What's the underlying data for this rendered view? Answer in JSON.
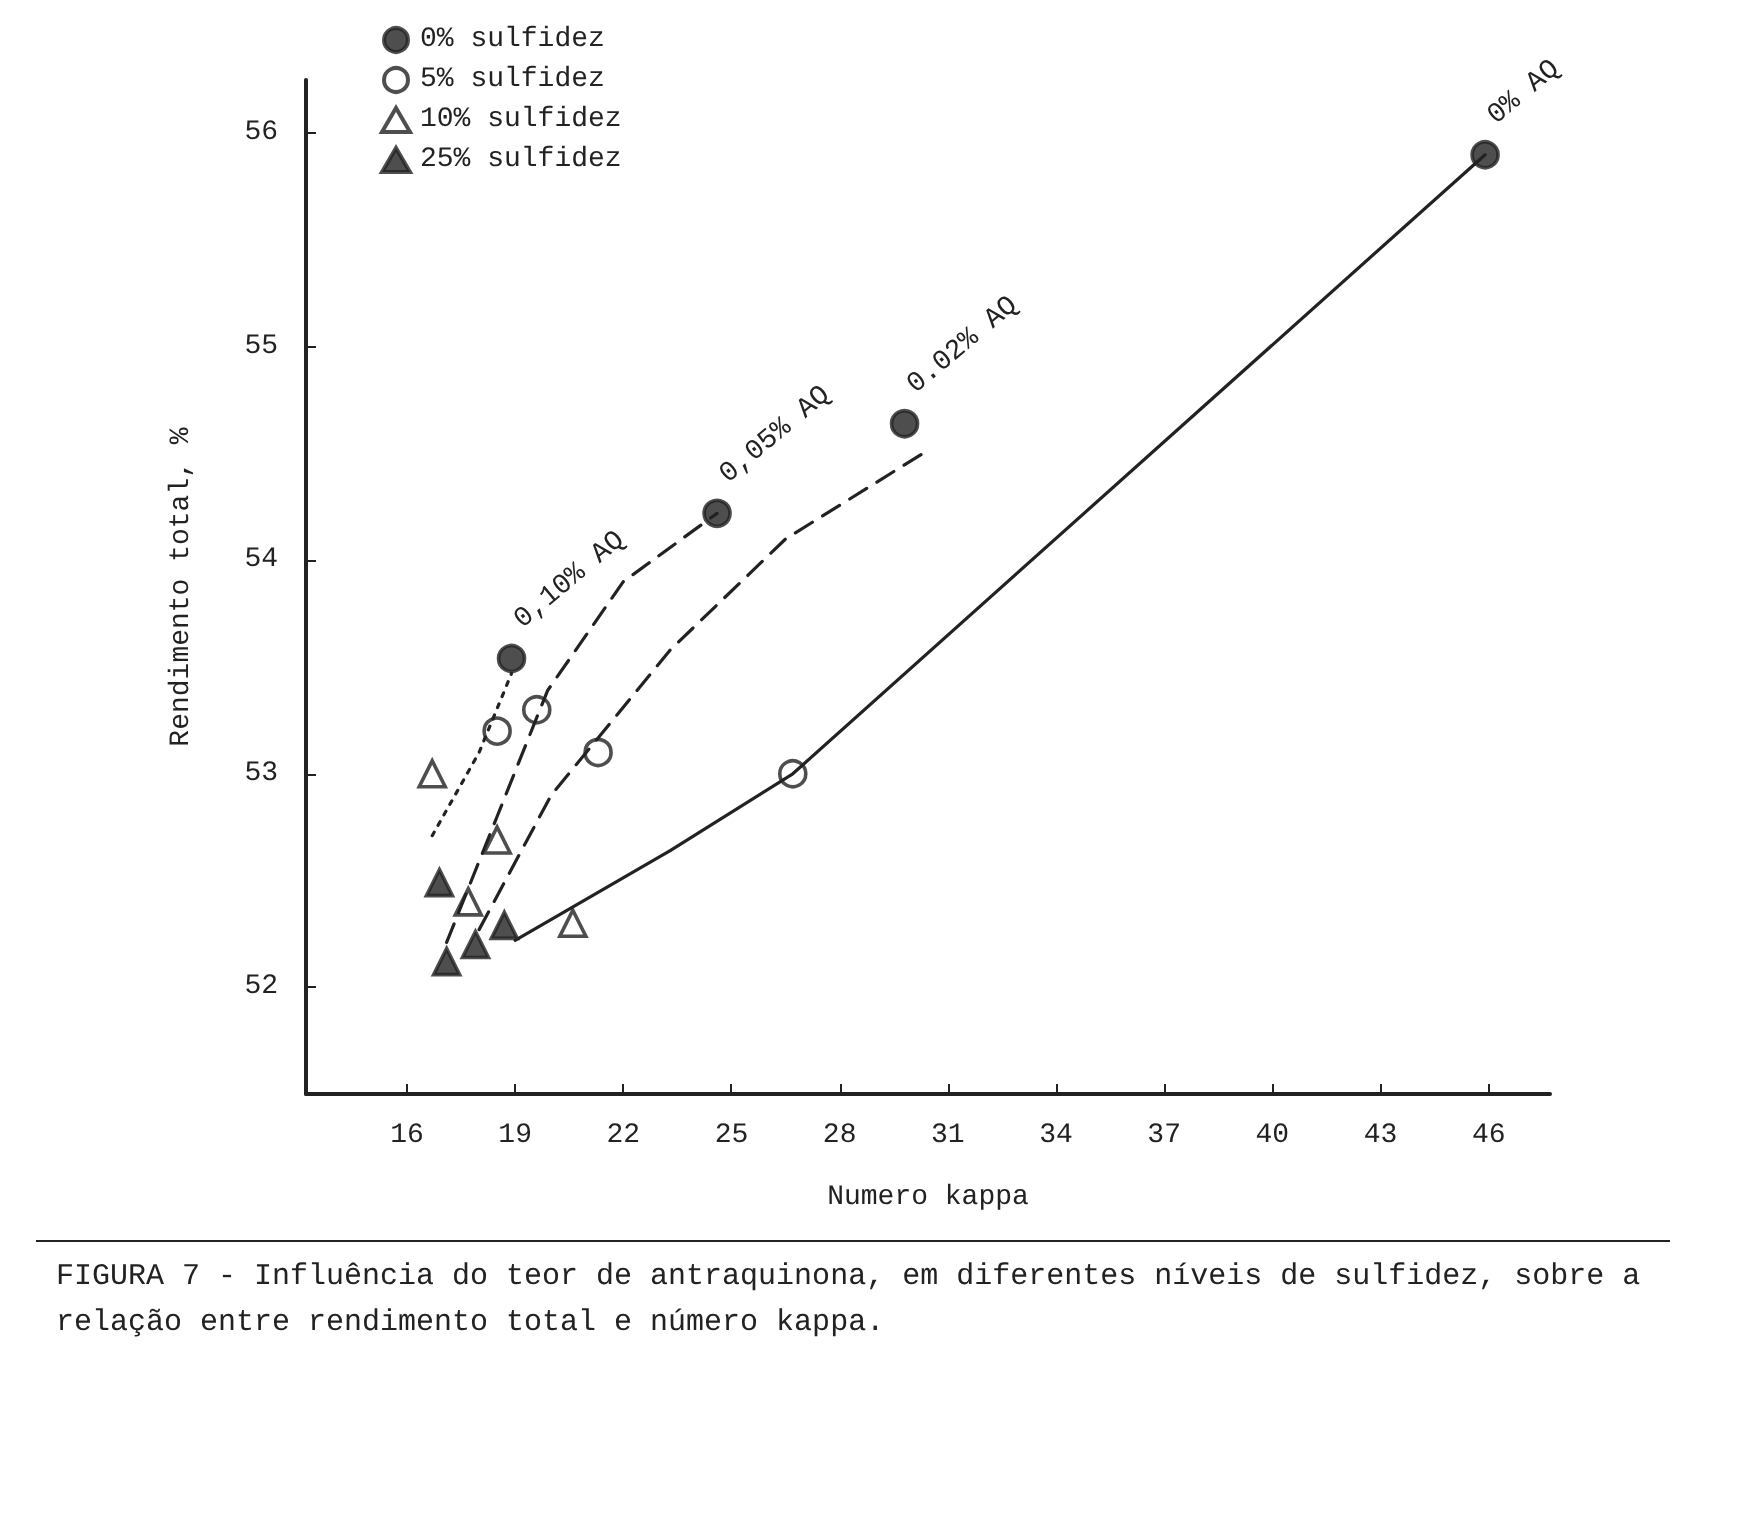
{
  "chart_data": {
    "type": "scatter",
    "xlabel": "Numero kappa",
    "ylabel": "Rendimento total, %",
    "xlim": [
      13.2,
      47.7
    ],
    "ylim": [
      51.5,
      56.25
    ],
    "xticks": [
      16,
      19,
      22,
      25,
      28,
      31,
      34,
      37,
      40,
      43,
      46
    ],
    "yticks": [
      52,
      53,
      54,
      55,
      56
    ],
    "grid": false,
    "legend": "top left",
    "series": [
      {
        "name": "0% sulfidez",
        "marker": "circle",
        "color": "#222222",
        "x": [
          18.9,
          24.6,
          29.8,
          45.9
        ],
        "values": [
          53.54,
          54.22,
          54.64,
          55.9
        ]
      },
      {
        "name": "5% sulfidez",
        "marker": "circle",
        "color": "#ffffff",
        "x": [
          18.5,
          19.6,
          21.3,
          26.7
        ],
        "values": [
          53.2,
          53.3,
          53.1,
          53.0
        ]
      },
      {
        "name": "10% sulfidez",
        "marker": "triangle",
        "color": "#ffffff",
        "x": [
          16.7,
          18.5,
          17.7,
          20.6
        ],
        "values": [
          53.0,
          52.69,
          52.4,
          52.3
        ]
      },
      {
        "name": "25% sulfidez",
        "marker": "triangle",
        "color": "#222222",
        "x": [
          16.9,
          17.1,
          17.9,
          18.7
        ],
        "values": [
          52.49,
          52.12,
          52.2,
          52.29
        ]
      },
      {
        "type": "line",
        "line_style": "solid",
        "marker": "none",
        "color": "#222222",
        "x": [
          19,
          23.3,
          26.7,
          45.9
        ],
        "values": [
          52.22,
          52.64,
          53.0,
          55.9
        ]
      },
      {
        "type": "line",
        "line_style": "dashed",
        "marker": "none",
        "color": "#222222",
        "x": [
          18,
          20,
          23.3,
          26.5,
          30.3
        ],
        "values": [
          52.27,
          52.9,
          53.58,
          54.1,
          54.5
        ]
      },
      {
        "type": "line",
        "line_style": "dashed",
        "marker": "none",
        "color": "#222222",
        "x": [
          17.1,
          18.5,
          19.9,
          22,
          24.6
        ],
        "values": [
          52.21,
          52.8,
          53.39,
          53.9,
          54.22
        ]
      },
      {
        "type": "line",
        "line_style": "dotted",
        "marker": "none",
        "color": "#222222",
        "x": [
          16.7,
          18,
          18.9
        ],
        "values": [
          52.71,
          53.1,
          53.47
        ]
      }
    ],
    "annotations": [
      {
        "text": "0% AQ",
        "x": 45.9,
        "y": 55.9
      },
      {
        "text": "0.02% AQ",
        "x": 29.8,
        "y": 54.64
      },
      {
        "text": "0,05% AQ",
        "x": 24.6,
        "y": 54.22
      },
      {
        "text": "0,10% AQ",
        "x": 18.9,
        "y": 53.54
      },
      "FIGURA 7 - Influência do teor de antraquinona, em diferentes níveis de sulfidez, sobre a relação entre rendimento total e número kappa."
    ]
  }
}
